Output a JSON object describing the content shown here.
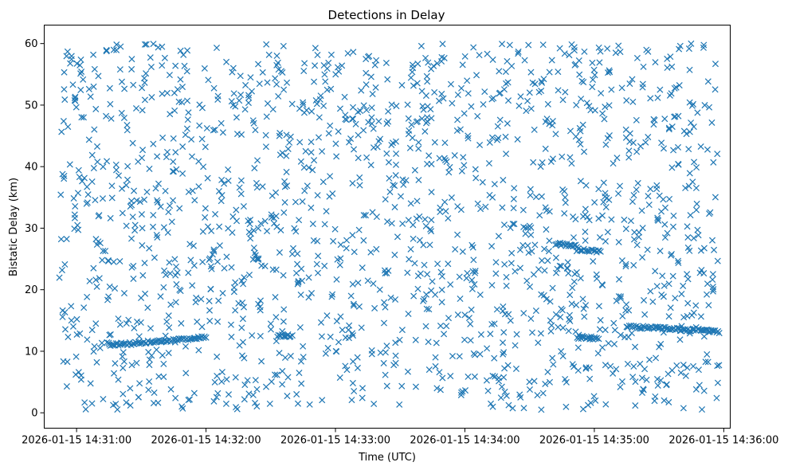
{
  "chart_data": {
    "type": "scatter",
    "title": "Detections in Delay",
    "xlabel": "Time (UTC)",
    "ylabel": "Bistatic Delay (km)",
    "marker": "x",
    "color": "#1f77b4",
    "grid": false,
    "legend": "none",
    "x_start": "2026-01-15 14:30:52",
    "x_end": "2026-01-15 14:35:58",
    "xlim": [
      "2026-01-15 14:30:45",
      "2026-01-15 14:36:03"
    ],
    "ylim": [
      -2.5,
      63
    ],
    "xticks": [
      "2026-01-15 14:31:00",
      "2026-01-15 14:32:00",
      "2026-01-15 14:33:00",
      "2026-01-15 14:34:00",
      "2026-01-15 14:35:00",
      "2026-01-15 14:36:00"
    ],
    "yticks": [
      "0",
      "10",
      "20",
      "30",
      "40",
      "50",
      "60"
    ],
    "noise_points": 1650,
    "tracks": [
      {
        "start": "2026-01-15 14:31:15",
        "end": "2026-01-15 14:31:39",
        "y_start": 11.0,
        "y_end": 11.6
      },
      {
        "start": "2026-01-15 14:31:39",
        "end": "2026-01-15 14:32:00",
        "y_start": 11.6,
        "y_end": 12.3
      },
      {
        "start": "2026-01-15 14:32:33",
        "end": "2026-01-15 14:32:40",
        "y_start": 12.5,
        "y_end": 12.5
      },
      {
        "start": "2026-01-15 14:34:42",
        "end": "2026-01-15 14:34:52",
        "y_start": 27.5,
        "y_end": 27.0
      },
      {
        "start": "2026-01-15 14:34:52",
        "end": "2026-01-15 14:35:03",
        "y_start": 26.5,
        "y_end": 26.2
      },
      {
        "start": "2026-01-15 14:34:52",
        "end": "2026-01-15 14:35:02",
        "y_start": 12.3,
        "y_end": 12.1
      },
      {
        "start": "2026-01-15 14:35:15",
        "end": "2026-01-15 14:35:58",
        "y_start": 14.0,
        "y_end": 13.2
      }
    ]
  }
}
